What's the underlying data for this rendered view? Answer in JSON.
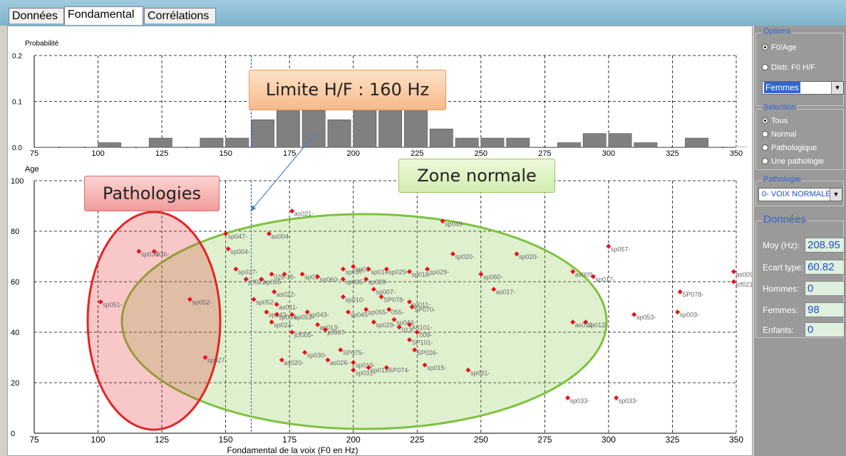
{
  "tabs": [
    {
      "label": "Données",
      "active": false
    },
    {
      "label": "Fondamental",
      "active": true
    },
    {
      "label": "Corrélations",
      "active": false
    }
  ],
  "options": {
    "group_label": "Options",
    "radio_f0_age": "F0/Age",
    "radio_distr": "Distr. F0 H/F",
    "combo_value": "Femmes"
  },
  "selection": {
    "group_label": "Sélection",
    "items": [
      "Tous",
      "Normal",
      "Pathologique",
      "Une pathologie"
    ],
    "selected": 0
  },
  "pathologie": {
    "group_label": "Pathologie",
    "combo_value": "0- VOIX NORMALE"
  },
  "donnees": {
    "group_label": "Données",
    "moy_label": "Moy (Hz):",
    "moy_value": "208.95",
    "ecart_label": "Ecart type:",
    "ecart_value": "60.82",
    "hommes_label": "Hommes:",
    "hommes_value": "0",
    "femmes_label": "Femmes:",
    "femmes_value": "98",
    "enfants_label": "Enfants:",
    "enfants_value": "0"
  },
  "callouts": {
    "limite": "Limite H/F : 160 Hz",
    "zone": "Zone normale",
    "patho": "Pathologies"
  },
  "colors": {
    "bar_fill": "#808080",
    "point": "#e8131d",
    "normal_zone": "#7ec23f",
    "patho_zone": "#e32426",
    "limit_line": "#2244cc"
  },
  "chart_data": [
    {
      "type": "bar",
      "ylabel": "Probabilité",
      "xlim": [
        75,
        350
      ],
      "ylim": [
        0,
        0.2
      ],
      "yticks": [
        0.0,
        0.1,
        0.2
      ],
      "yticklabels": [
        "0.0",
        "0.1",
        "0.2"
      ],
      "xticks": [
        75,
        100,
        125,
        150,
        175,
        200,
        225,
        250,
        275,
        300,
        325,
        350
      ],
      "bin_width": 10,
      "bins": [
        {
          "x": 100,
          "value": 0.01
        },
        {
          "x": 120,
          "value": 0.02
        },
        {
          "x": 140,
          "value": 0.02
        },
        {
          "x": 150,
          "value": 0.02
        },
        {
          "x": 160,
          "value": 0.06
        },
        {
          "x": 170,
          "value": 0.09
        },
        {
          "x": 180,
          "value": 0.08
        },
        {
          "x": 190,
          "value": 0.06
        },
        {
          "x": 200,
          "value": 0.09
        },
        {
          "x": 210,
          "value": 0.09
        },
        {
          "x": 220,
          "value": 0.09
        },
        {
          "x": 230,
          "value": 0.04
        },
        {
          "x": 240,
          "value": 0.02
        },
        {
          "x": 250,
          "value": 0.02
        },
        {
          "x": 260,
          "value": 0.02
        },
        {
          "x": 280,
          "value": 0.01
        },
        {
          "x": 290,
          "value": 0.03
        },
        {
          "x": 300,
          "value": 0.03
        },
        {
          "x": 310,
          "value": 0.01
        },
        {
          "x": 330,
          "value": 0.02
        }
      ],
      "grid": true
    },
    {
      "type": "scatter",
      "ylabel": "Age",
      "xlabel": "Fondamental de la voix (F0 en Hz)",
      "xlim": [
        75,
        350
      ],
      "ylim": [
        0,
        100
      ],
      "xticks": [
        75,
        100,
        125,
        150,
        175,
        200,
        225,
        250,
        275,
        300,
        325,
        350
      ],
      "yticks": [
        0,
        20,
        40,
        60,
        80,
        100
      ],
      "grid": true,
      "limit_line_x": 160,
      "points": [
        {
          "x": 101,
          "y": 52,
          "label": "sp051-"
        },
        {
          "x": 116,
          "y": 72,
          "label": "sp036-"
        },
        {
          "x": 122,
          "y": 72,
          "label": "036-"
        },
        {
          "x": 136,
          "y": 53,
          "label": "sp052-"
        },
        {
          "x": 142,
          "y": 30,
          "label": "sp027-"
        },
        {
          "x": 150,
          "y": 79,
          "label": "sp047-"
        },
        {
          "x": 151,
          "y": 73,
          "label": "sp004-"
        },
        {
          "x": 154,
          "y": 65,
          "label": "sp037-"
        },
        {
          "x": 158,
          "y": 61,
          "label": "jcf021-"
        },
        {
          "x": 161,
          "y": 53,
          "label": "sp052-"
        },
        {
          "x": 167,
          "y": 79,
          "label": "as004-"
        },
        {
          "x": 176,
          "y": 88,
          "label": "as021-"
        },
        {
          "x": 164,
          "y": 61,
          "label": "sp035-"
        },
        {
          "x": 168,
          "y": 63,
          "label": "028-"
        },
        {
          "x": 173,
          "y": 63,
          "label": "15-"
        },
        {
          "x": 169,
          "y": 56,
          "label": "as022-"
        },
        {
          "x": 170,
          "y": 51,
          "label": "as011-"
        },
        {
          "x": 166,
          "y": 48,
          "label": "sp043-"
        },
        {
          "x": 170,
          "y": 47,
          "label": "sp034-"
        },
        {
          "x": 176,
          "y": 47,
          "label": "sp053-"
        },
        {
          "x": 168,
          "y": 44,
          "label": "sp024-"
        },
        {
          "x": 176,
          "y": 40,
          "label": "jcf005-"
        },
        {
          "x": 182,
          "y": 48,
          "label": "sp043-"
        },
        {
          "x": 180,
          "y": 63,
          "label": "sp01-"
        },
        {
          "x": 186,
          "y": 62,
          "label": "sp060-"
        },
        {
          "x": 196,
          "y": 65,
          "label": "sp037-"
        },
        {
          "x": 200,
          "y": 66,
          "label": "sp01-"
        },
        {
          "x": 206,
          "y": 65,
          "label": "sp014-"
        },
        {
          "x": 213,
          "y": 65,
          "label": "sp029-"
        },
        {
          "x": 222,
          "y": 64,
          "label": "sp018-"
        },
        {
          "x": 229,
          "y": 65,
          "label": "sp029-"
        },
        {
          "x": 196,
          "y": 61,
          "label": "sp035-"
        },
        {
          "x": 205,
          "y": 61,
          "label": "sp028-"
        },
        {
          "x": 208,
          "y": 57,
          "label": "sp007-"
        },
        {
          "x": 196,
          "y": 54,
          "label": "sp010-"
        },
        {
          "x": 211,
          "y": 54,
          "label": "SP078-"
        },
        {
          "x": 222,
          "y": 52,
          "label": "sp011-"
        },
        {
          "x": 223,
          "y": 50,
          "label": "SP070-"
        },
        {
          "x": 198,
          "y": 48,
          "label": "sp045-"
        },
        {
          "x": 205,
          "y": 49,
          "label": "sp055-"
        },
        {
          "x": 214,
          "y": 49,
          "label": "055-"
        },
        {
          "x": 208,
          "y": 44,
          "label": "sp029-"
        },
        {
          "x": 216,
          "y": 45,
          "label": "sp044-"
        },
        {
          "x": 222,
          "y": 43,
          "label": "A5101-"
        },
        {
          "x": 225,
          "y": 40,
          "label": "009-"
        },
        {
          "x": 222,
          "y": 37,
          "label": "SP101-"
        },
        {
          "x": 224,
          "y": 33,
          "label": "SP026-"
        },
        {
          "x": 218,
          "y": 42,
          "label": "013-"
        },
        {
          "x": 186,
          "y": 43,
          "label": "as013-"
        },
        {
          "x": 189,
          "y": 41,
          "label": "jcf007-"
        },
        {
          "x": 181,
          "y": 32,
          "label": "sp030-"
        },
        {
          "x": 190,
          "y": 29,
          "label": "as026-"
        },
        {
          "x": 195,
          "y": 33,
          "label": "SP075-"
        },
        {
          "x": 200,
          "y": 28,
          "label": "sp019-"
        },
        {
          "x": 206,
          "y": 26,
          "label": "sp013-"
        },
        {
          "x": 200,
          "y": 25,
          "label": "sp031-"
        },
        {
          "x": 213,
          "y": 26,
          "label": "SP074-"
        },
        {
          "x": 228,
          "y": 27,
          "label": "sp015-"
        },
        {
          "x": 245,
          "y": 25,
          "label": "sp031-"
        },
        {
          "x": 172,
          "y": 29,
          "label": "as020-"
        },
        {
          "x": 235,
          "y": 84,
          "label": "sp049-"
        },
        {
          "x": 239,
          "y": 71,
          "label": "sp020-"
        },
        {
          "x": 264,
          "y": 71,
          "label": "sp020-"
        },
        {
          "x": 250,
          "y": 63,
          "label": "sp060-"
        },
        {
          "x": 255,
          "y": 57,
          "label": "as017-"
        },
        {
          "x": 286,
          "y": 64,
          "label": "as009-"
        },
        {
          "x": 294,
          "y": 62,
          "label": "sp017-"
        },
        {
          "x": 300,
          "y": 74,
          "label": "sp057-"
        },
        {
          "x": 286,
          "y": 44,
          "label": "as012-"
        },
        {
          "x": 291,
          "y": 44,
          "label": "sp012-"
        },
        {
          "x": 310,
          "y": 47,
          "label": "sp053-"
        },
        {
          "x": 327,
          "y": 48,
          "label": "sp003-"
        },
        {
          "x": 328,
          "y": 56,
          "label": "SP078-"
        },
        {
          "x": 349,
          "y": 64,
          "label": "as009"
        },
        {
          "x": 349,
          "y": 60,
          "label": "jcf021"
        },
        {
          "x": 284,
          "y": 14,
          "label": "sp033-"
        },
        {
          "x": 303,
          "y": 14,
          "label": "sp033-"
        }
      ]
    }
  ]
}
